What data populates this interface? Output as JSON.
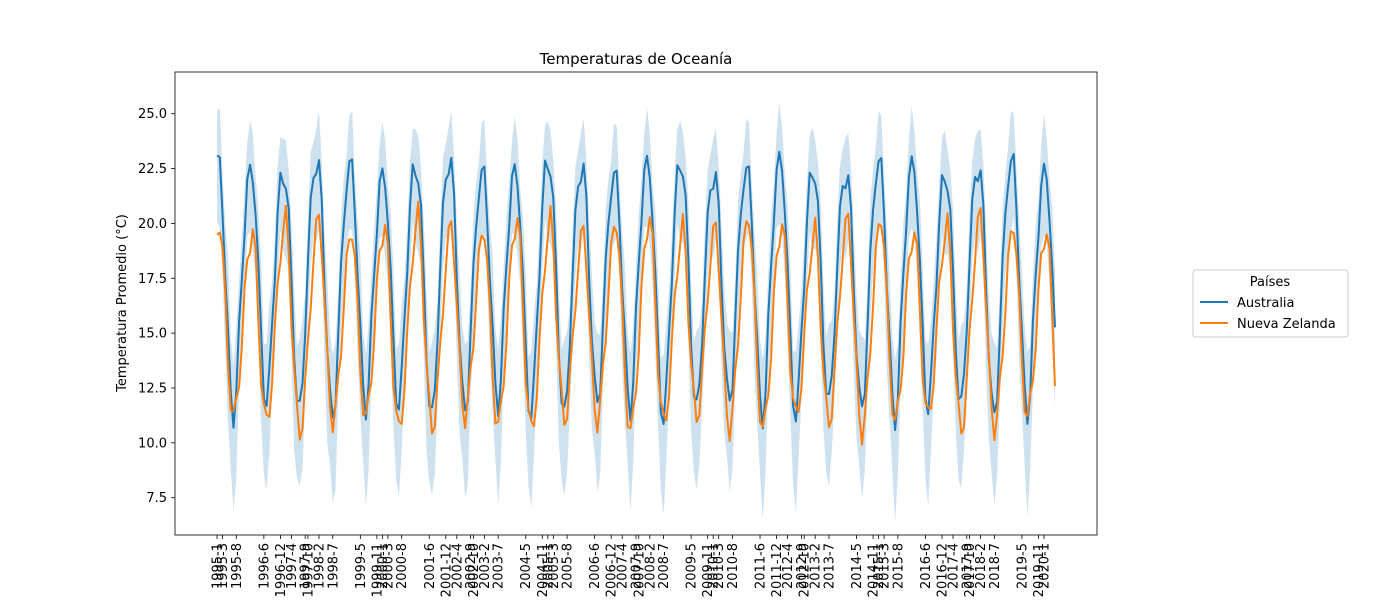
{
  "chart_data": {
    "type": "line",
    "title": "Temperaturas de Oceanía",
    "xlabel": "",
    "ylabel": "Temperatura Promedio (°C)",
    "ylim": [
      5.8,
      26.9
    ],
    "yticks": [
      7.5,
      10.0,
      12.5,
      15.0,
      17.5,
      20.0,
      22.5,
      25.0
    ],
    "ytick_labels": [
      "7.5",
      "10.0",
      "12.5",
      "15.0",
      "17.5",
      "20.0",
      "22.5",
      "25.0"
    ],
    "x_start": "1995-1",
    "x_end": "2020-5",
    "xtick_labels": [
      "1995-1",
      "1995-3",
      "1995-8",
      "1996-12",
      "1996-6",
      "1997-10",
      "1997-4",
      "1997-9",
      "1998-2",
      "1998-7",
      "1999-11",
      "1999-5",
      "2000-1",
      "2000-3",
      "2000-8",
      "2001-12",
      "2001-6",
      "2002-10",
      "2002-4",
      "2002-9",
      "2003-2",
      "2003-7",
      "2004-11",
      "2004-5",
      "2005-1",
      "2005-3",
      "2005-8",
      "2006-12",
      "2006-6",
      "2007-10",
      "2007-4",
      "2007-9",
      "2008-2",
      "2008-7",
      "2009-11",
      "2009-5",
      "2010-1",
      "2010-3",
      "2010-8",
      "2011-12",
      "2011-6",
      "2012-10",
      "2012-4",
      "2012-9",
      "2013-2",
      "2013-7",
      "2014-11",
      "2014-5",
      "2015-1",
      "2015-3",
      "2015-8",
      "2016-12",
      "2016-6",
      "2017-10",
      "2017-4",
      "2017-9",
      "2018-2",
      "2018-7",
      "2019-11",
      "2019-5",
      "2020-1"
    ],
    "legend": {
      "title": "Países",
      "position": "right"
    },
    "series": [
      {
        "name": "Australia",
        "color": "#1f77b4",
        "band_color": "#1f77b4",
        "years": [
          1995,
          2020
        ],
        "monthly_profile": [
          22.4,
          22.3,
          20.6,
          17.6,
          14.6,
          12.2,
          11.4,
          12.6,
          15.3,
          17.9,
          20.3,
          22.0
        ],
        "band_halfwidth": [
          2.0,
          2.0,
          2.0,
          2.4,
          2.9,
          2.9,
          2.8,
          2.6,
          2.2,
          2.0,
          1.9,
          1.9
        ]
      },
      {
        "name": "Nueva Zelanda",
        "color": "#ff7f0e",
        "years": [
          1995,
          2020
        ],
        "monthly_profile": [
          19.5,
          20.1,
          18.7,
          16.0,
          13.4,
          11.6,
          10.8,
          11.4,
          12.8,
          14.6,
          16.7,
          18.4
        ]
      }
    ]
  }
}
